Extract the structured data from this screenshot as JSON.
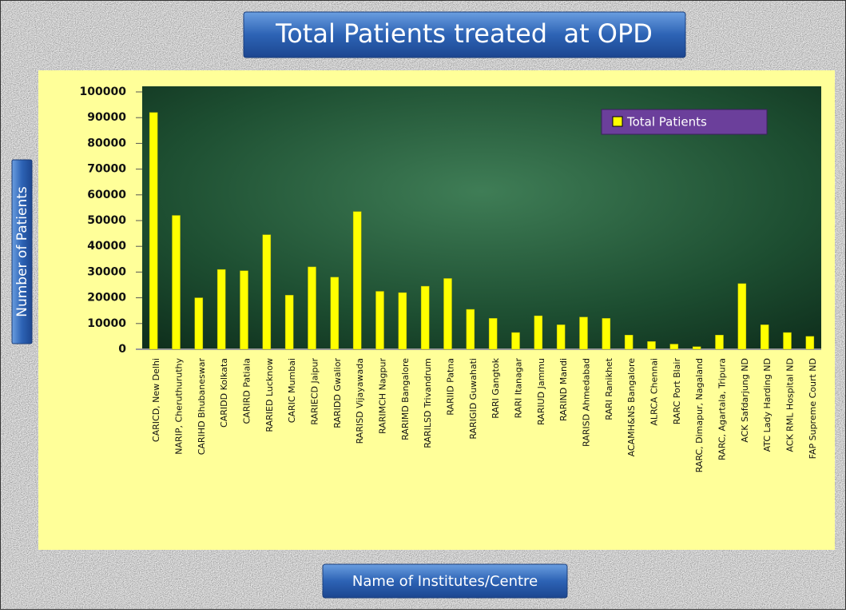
{
  "chart_data": {
    "type": "bar",
    "title": "Total Patients treated  at OPD",
    "x_label": "Name of Institutes/Centre",
    "y_label": "Number of Patients",
    "categories": [
      "CARICD, New Delhi",
      "NARIP, Cheruthuruthy",
      "CARIHD Bhubaneswar",
      "CARIDD Kolkata",
      "CARIRD Patiala",
      "RARIED Lucknow",
      "CARIC  Mumbai",
      "RARIECD Jaipur",
      "RARIDD Gwalior",
      "RARISD Vijayawada",
      "RARIMCH Nagpur",
      "RARIMD Bangalore",
      "RARILSD Trivandrum",
      "RARIID Patna",
      "RARIGID Guwahati",
      "RARI Gangtok",
      "RARI Itanagar",
      "RARIUD Jammu",
      "RARIND Mandi",
      "RARISD Ahmedabad",
      "RARI Ranikhet",
      "ACAMH&NS Bangalore",
      "ALRCA Chennai",
      "RARC Port Blair",
      "RARC, Dimapur,  Nagaland",
      "RARC, Agartala, Tripura",
      "ACK Safdarjung  ND",
      "ATC Lady Harding  ND",
      "ACK RML Hospital ND",
      "FAP Supreme Court ND"
    ],
    "series": [
      {
        "name": "Total Patients",
        "color": "#ffff00",
        "values": [
          92000,
          52000,
          20000,
          31000,
          30500,
          44500,
          21000,
          32000,
          28000,
          53500,
          22500,
          22000,
          24500,
          27500,
          15500,
          12000,
          6500,
          13000,
          9500,
          12500,
          12000,
          5500,
          3000,
          2000,
          1000,
          5500,
          25500,
          9500,
          6500,
          5000
        ]
      }
    ],
    "ylim": [
      0,
      100000
    ],
    "yticks": [
      0,
      10000,
      20000,
      30000,
      40000,
      50000,
      60000,
      70000,
      80000,
      90000,
      100000
    ],
    "legend": "top-right"
  }
}
